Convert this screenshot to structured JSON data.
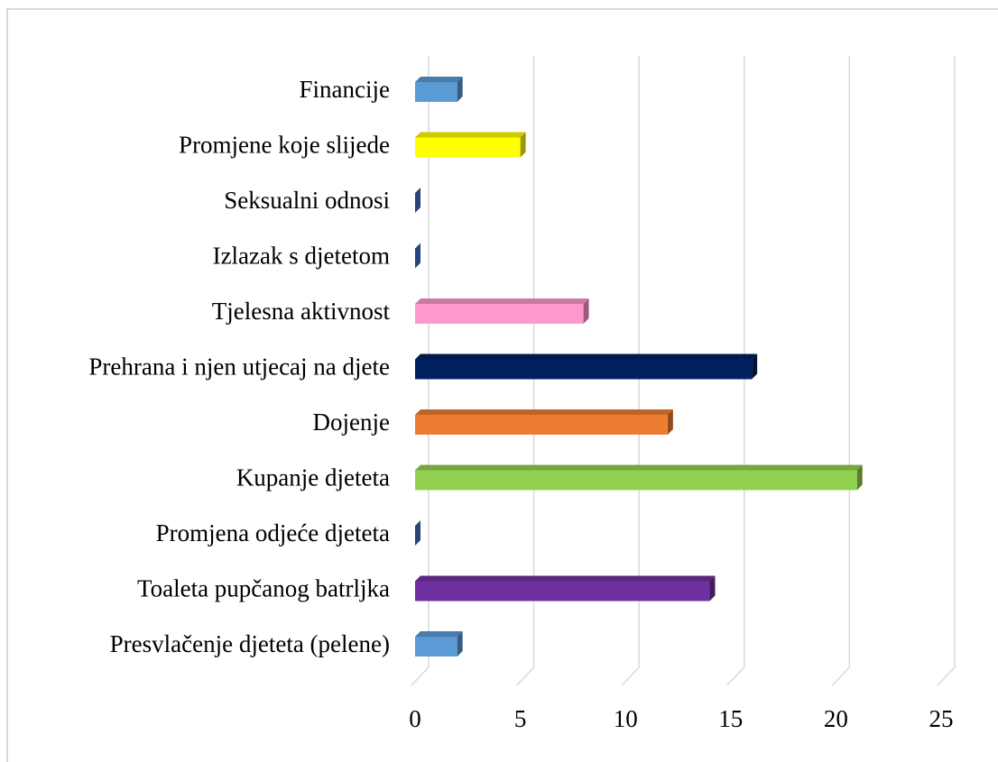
{
  "chart_data": {
    "type": "bar",
    "orientation": "horizontal",
    "categories": [
      "Financije",
      "Promjene koje slijede",
      "Seksualni odnosi",
      "Izlazak s djetetom",
      "Tjelesna aktivnost",
      "Prehrana i njen utjecaj na djete",
      "Dojenje",
      "Kupanje djeteta",
      "Promjena odjeće djeteta",
      "Toaleta pupčanog batrljka",
      "Presvlačenje djeteta (pelene)"
    ],
    "values": [
      2,
      5,
      0,
      0,
      8,
      16,
      12,
      21,
      0,
      14,
      2
    ],
    "colors": [
      "#5b9bd5",
      "#ffff00",
      "#4472c4",
      "#4472c4",
      "#ff99cc",
      "#002060",
      "#ed7d31",
      "#92d050",
      "#4472c4",
      "#7030a0",
      "#5b9bd5"
    ],
    "xlim": [
      0,
      25
    ],
    "xticks": [
      0,
      5,
      10,
      15,
      20,
      25
    ],
    "grid": true
  }
}
